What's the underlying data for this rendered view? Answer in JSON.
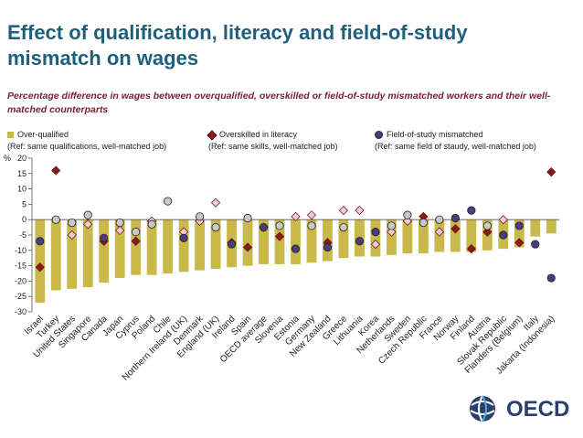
{
  "title": "Effect of qualification, literacy and field-of-study mismatch on wages",
  "subtitle": "Percentage difference in wages between overqualified, overskilled or field-of-study mismatched workers and their well-matched counterparts",
  "legend": {
    "bar_label": "Over-qualified",
    "bar_ref": "(Ref: same qualifications, well-matched job)",
    "diamond_label": "Overskilled in literacy",
    "diamond_ref": "(Ref: same skills, well-matched job)",
    "circle_label": "Field-of-study mismatched",
    "circle_ref": "(Ref: same field of staudy, well-matched job)"
  },
  "logo_text": "OECD",
  "colors": {
    "bar": "#c8b94a",
    "diamond_sig": "#8b1a1a",
    "diamond_ns": "#f2c9d4",
    "circle_sig": "#4e3a7e",
    "circle_ns": "#c8c8c8",
    "title": "#1f5f7a",
    "subtitle": "#7a1f2f"
  },
  "chart_data": {
    "type": "bar",
    "ylabel": "%",
    "ylim": [
      -30,
      20
    ],
    "yticks": [
      20,
      15,
      10,
      5,
      0,
      -5,
      -10,
      -15,
      -20,
      -25,
      -30
    ],
    "categories": [
      "Israel",
      "Turkey",
      "United States",
      "Singapore",
      "Canada",
      "Japan",
      "Cyprus",
      "Poland",
      "Chile",
      "Northern Ireland (UK)",
      "Denmark",
      "England (UK)",
      "Ireland",
      "Spain",
      "OECD average",
      "Slovenia",
      "Estonia",
      "Germany",
      "New Zealand",
      "Greece",
      "Lithuania",
      "Korea",
      "Netherlands",
      "Sweden",
      "Czech Republic",
      "France",
      "Norway",
      "Finland",
      "Austria",
      "Slovak Republic",
      "Flanders (Belgium)",
      "Italy",
      "Jakarta (Indonesia)"
    ],
    "series": [
      {
        "name": "Over-qualified",
        "kind": "bar",
        "values": [
          -27,
          -23,
          -22.5,
          -22,
          -20.5,
          -19,
          -18,
          -18,
          -17.5,
          -17,
          -16.5,
          -16,
          -15.5,
          -15,
          -14.5,
          -14.5,
          -14.5,
          -14,
          -13.5,
          -12.5,
          -12,
          -12,
          -11.5,
          -11,
          -11,
          -10.5,
          -10.5,
          -10.5,
          -10,
          -9.5,
          -9,
          -5.5,
          -4.5
        ]
      },
      {
        "name": "Overskilled in literacy",
        "kind": "diamond",
        "values": [
          -15.5,
          16,
          -5,
          -1.5,
          -7,
          -3.5,
          -7,
          -0.5,
          null,
          -4,
          -0.5,
          5.5,
          -7.5,
          -9,
          -2.5,
          -5.5,
          1,
          1.5,
          -7.5,
          3,
          3,
          -8,
          -4,
          -0.5,
          1,
          -4,
          -3,
          -9.5,
          -4,
          0,
          -7.5,
          null,
          15.5
        ],
        "significant": [
          true,
          true,
          false,
          false,
          true,
          false,
          true,
          false,
          null,
          false,
          false,
          false,
          true,
          true,
          false,
          true,
          false,
          false,
          true,
          false,
          false,
          false,
          false,
          false,
          true,
          false,
          true,
          true,
          true,
          false,
          true,
          null,
          true
        ]
      },
      {
        "name": "Field-of-study mismatched",
        "kind": "circle",
        "values": [
          -7,
          0,
          -1,
          1.5,
          -6,
          -1,
          -4,
          -1.5,
          6,
          -6,
          1,
          -2.5,
          -8,
          0.5,
          -2.5,
          -2,
          -9.5,
          -2,
          -9,
          -2.5,
          -7,
          -4,
          -2,
          1.5,
          -1,
          0,
          0.5,
          3,
          -2,
          -5,
          -2,
          -8,
          -19
        ],
        "significant": [
          true,
          false,
          false,
          false,
          true,
          false,
          false,
          false,
          false,
          true,
          false,
          false,
          true,
          false,
          true,
          false,
          true,
          false,
          true,
          false,
          true,
          true,
          false,
          false,
          false,
          false,
          true,
          true,
          false,
          true,
          true,
          true,
          true
        ]
      }
    ]
  }
}
